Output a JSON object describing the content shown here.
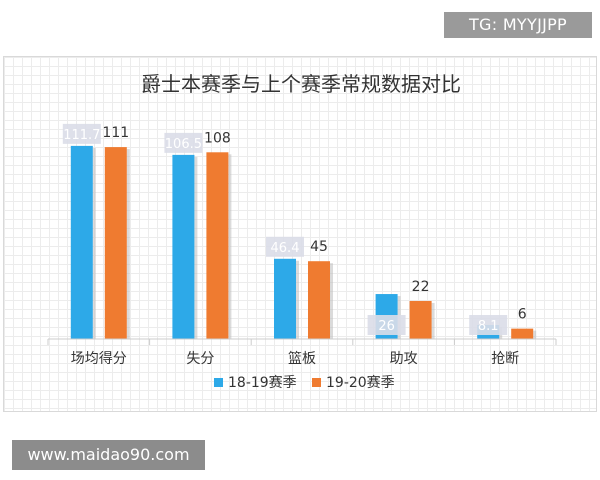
{
  "watermarks": {
    "top": "TG: MYYJJPP",
    "bottom": "www.maidao90.com"
  },
  "colors": {
    "series1": "#2da9e8",
    "series2": "#ef7b30",
    "label_box": "#dadde8",
    "label_box_text": "#ffffff",
    "text": "#333333"
  },
  "chart_data": {
    "type": "bar",
    "title": "爵士本赛季与上个赛季常规数据对比",
    "categories": [
      "场均得分",
      "失分",
      "篮板",
      "助攻",
      "抢断"
    ],
    "series": [
      {
        "name": "18-19赛季",
        "values": [
          111.7,
          106.5,
          46.4,
          26,
          8.1
        ],
        "labels": [
          "111.7",
          "106.5",
          "46.4",
          "26",
          "8.1"
        ]
      },
      {
        "name": "19-20赛季",
        "values": [
          111,
          108,
          45,
          22,
          6
        ],
        "labels": [
          "111",
          "108",
          "45",
          "22",
          "6"
        ]
      }
    ],
    "ylim": [
      0,
      118
    ],
    "grid": true,
    "legend": "bottom"
  }
}
